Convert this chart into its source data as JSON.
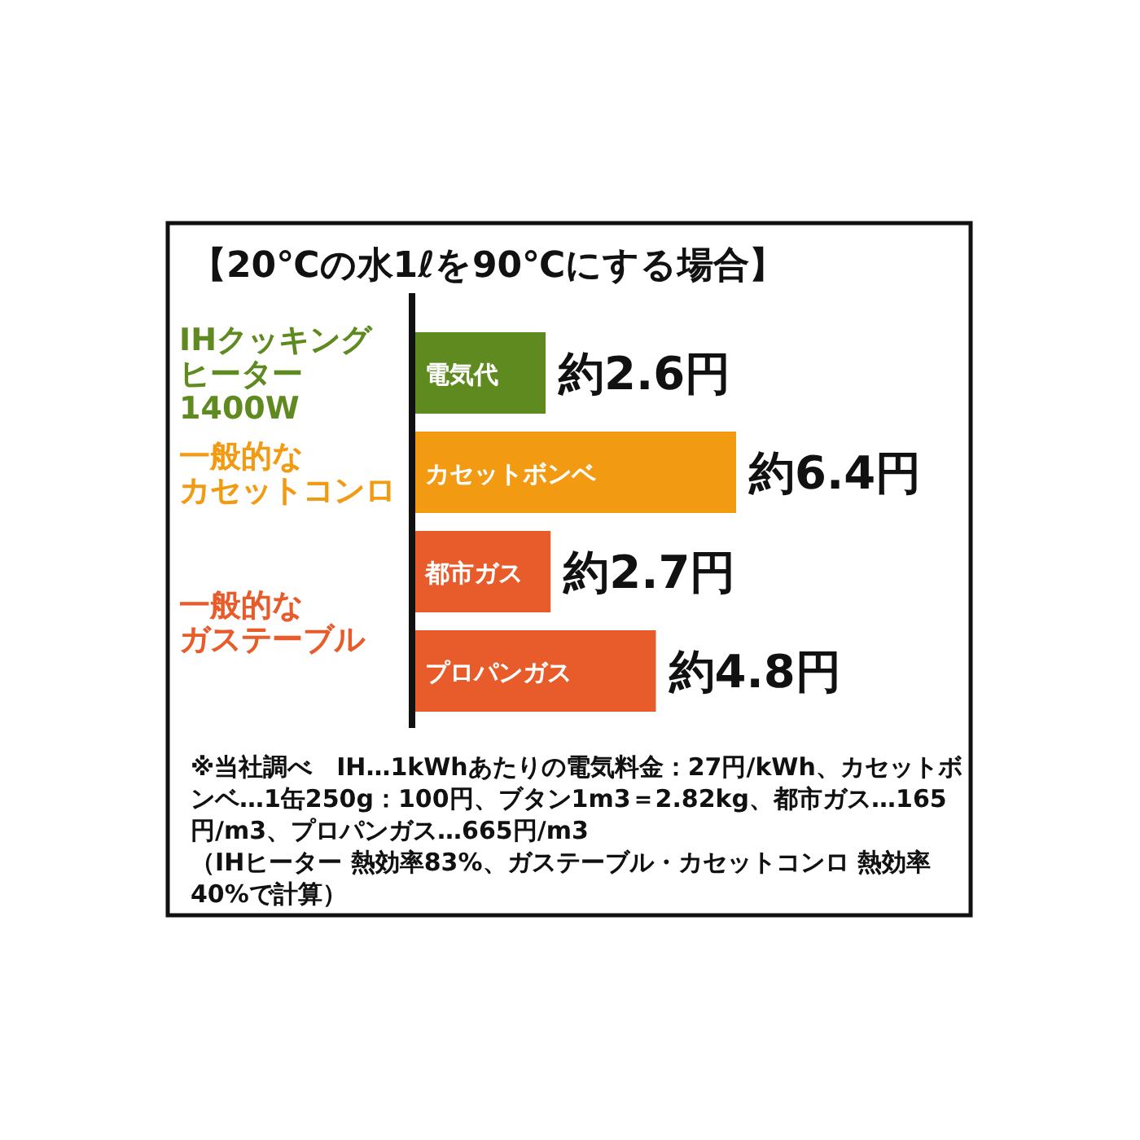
{
  "chart_data": {
    "type": "bar",
    "orientation": "horizontal",
    "title": "【20℃の水1ℓを90℃にする場合】",
    "categories": [
      "電気代",
      "カセットボンベ",
      "都市ガス",
      "プロパンガス"
    ],
    "series": [
      {
        "name": "IHクッキングヒーター1400W",
        "color": "#5e8a1f",
        "values": [
          2.6,
          null,
          null,
          null
        ],
        "value_labels": [
          "約2.6円",
          null,
          null,
          null
        ]
      },
      {
        "name": "一般的なカセットコンロ",
        "color": "#f29a12",
        "values": [
          null,
          6.4,
          null,
          null
        ],
        "value_labels": [
          null,
          "約6.4円",
          null,
          null
        ]
      },
      {
        "name": "一般的なガステーブル",
        "color": "#e85c2c",
        "values": [
          null,
          null,
          2.7,
          4.8
        ],
        "value_labels": [
          null,
          null,
          "約2.7円",
          "約4.8円"
        ]
      }
    ],
    "annotations": [
      "※当社調べ　IH…1kWhあたりの電気料金：27円/kWh、カセットボンベ…1缶250g：100円、ブタン1m3＝2.82kg、都市ガス…165円/m3、プロパンガス…665円/m3",
      "（IHヒーター 熱効率83%、ガステーブル・カセットコンロ 熱効率40%で計算）"
    ]
  }
}
